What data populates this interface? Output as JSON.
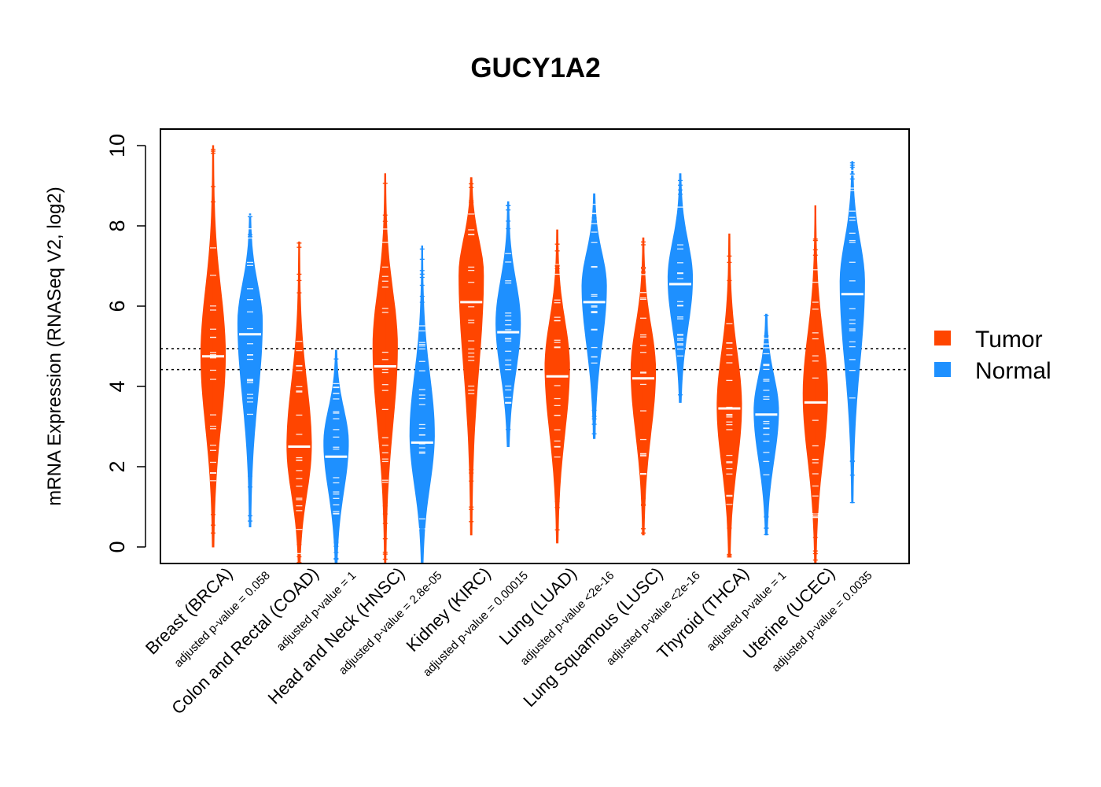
{
  "chart_data": {
    "type": "violin",
    "title": "GUCY1A2",
    "ylabel": "mRNA Expression (RNASeq V2, log2)",
    "ylim": [
      -0.4,
      10.45
    ],
    "yticks": [
      "0",
      "2",
      "4",
      "6",
      "8",
      "10"
    ],
    "reference_lines": [
      4.42,
      4.94
    ],
    "colors": {
      "Tumor": "#FF4500",
      "Normal": "#1E90FF"
    },
    "legend": {
      "position": "right",
      "entries": [
        "Tumor",
        "Normal"
      ]
    },
    "categories": [
      {
        "name": "Breast (BRCA)",
        "pvalue": "adjusted p-value = 0.058",
        "tumor": {
          "median": 4.75,
          "min": 0.0,
          "max": 10.0,
          "mode": 4.8
        },
        "normal": {
          "median": 5.3,
          "min": 0.5,
          "max": 8.3,
          "mode": 5.6
        }
      },
      {
        "name": "Colon and Rectal (COAD)",
        "pvalue": "adjusted p-value = 1",
        "tumor": {
          "median": 2.5,
          "min": -0.4,
          "max": 7.6,
          "mode": 2.5
        },
        "normal": {
          "median": 2.25,
          "min": -0.4,
          "max": 4.9,
          "mode": 2.6
        }
      },
      {
        "name": "Head and Neck (HNSC)",
        "pvalue": "adjusted p-value = 2.8e-05",
        "tumor": {
          "median": 4.5,
          "min": -0.4,
          "max": 9.3,
          "mode": 5.0
        },
        "normal": {
          "median": 2.6,
          "min": -0.4,
          "max": 7.5,
          "mode": 2.8
        }
      },
      {
        "name": "Kidney (KIRC)",
        "pvalue": "adjusted p-value = 0.00015",
        "tumor": {
          "median": 6.1,
          "min": 0.3,
          "max": 9.2,
          "mode": 6.8
        },
        "normal": {
          "median": 5.35,
          "min": 2.5,
          "max": 8.6,
          "mode": 5.6
        }
      },
      {
        "name": "Lung (LUAD)",
        "pvalue": "adjusted p-value <2e-16",
        "tumor": {
          "median": 4.25,
          "min": 0.1,
          "max": 7.9,
          "mode": 4.5
        },
        "normal": {
          "median": 6.1,
          "min": 2.7,
          "max": 8.8,
          "mode": 6.5
        }
      },
      {
        "name": "Lung Squamous (LUSC)",
        "pvalue": "adjusted p-value <2e-16",
        "tumor": {
          "median": 4.2,
          "min": 0.3,
          "max": 7.7,
          "mode": 4.4
        },
        "normal": {
          "median": 6.55,
          "min": 3.6,
          "max": 9.3,
          "mode": 6.7
        }
      },
      {
        "name": "Thyroid (THCA)",
        "pvalue": "adjusted p-value = 1",
        "tumor": {
          "median": 3.45,
          "min": -0.25,
          "max": 7.8,
          "mode": 3.5
        },
        "normal": {
          "median": 3.3,
          "min": 0.3,
          "max": 5.8,
          "mode": 3.4
        }
      },
      {
        "name": "Uterine (UCEC)",
        "pvalue": "adjusted p-value = 0.0035",
        "tumor": {
          "median": 3.6,
          "min": -0.4,
          "max": 8.5,
          "mode": 3.8
        },
        "normal": {
          "median": 6.3,
          "min": 1.1,
          "max": 9.6,
          "mode": 6.6
        }
      }
    ]
  }
}
